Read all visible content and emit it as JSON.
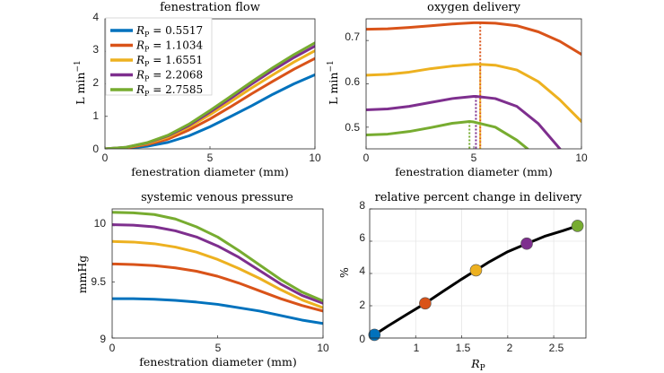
{
  "colors": {
    "blue": "#0072BD",
    "orange": "#D95319",
    "yellow": "#EDB120",
    "purple": "#7E2F8E",
    "green": "#77AC30",
    "black": "#000000"
  },
  "chart_data": [
    {
      "id": "fenestration-flow",
      "type": "line",
      "title": "fenestration flow",
      "xlabel": "fenestration diameter (mm)",
      "ylabel": "L min",
      "ylabel_sup": "−1",
      "xlim": [
        0,
        10
      ],
      "ylim": [
        0,
        4
      ],
      "xticks": [
        "0",
        "5",
        "10"
      ],
      "yticks": [
        "0",
        "1",
        "2",
        "3",
        "4"
      ],
      "legend": "top-left",
      "grid": false,
      "series": [
        {
          "name": "= 0.5517",
          "color": "#0072BD",
          "x": [
            0,
            1,
            2,
            3,
            4,
            5,
            6,
            7,
            8,
            9,
            10
          ],
          "y": [
            0,
            0.02,
            0.08,
            0.2,
            0.4,
            0.68,
            1.0,
            1.33,
            1.68,
            2.0,
            2.28
          ]
        },
        {
          "name": "= 1.1034",
          "color": "#D95319",
          "x": [
            0,
            1,
            2,
            3,
            4,
            5,
            6,
            7,
            8,
            9,
            10
          ],
          "y": [
            0,
            0.03,
            0.13,
            0.3,
            0.58,
            0.92,
            1.3,
            1.7,
            2.08,
            2.45,
            2.78
          ]
        },
        {
          "name": "= 1.6551",
          "color": "#EDB120",
          "x": [
            0,
            1,
            2,
            3,
            4,
            5,
            6,
            7,
            8,
            9,
            10
          ],
          "y": [
            0,
            0.04,
            0.16,
            0.36,
            0.67,
            1.05,
            1.46,
            1.88,
            2.28,
            2.67,
            3.02
          ]
        },
        {
          "name": "= 2.2068",
          "color": "#7E2F8E",
          "x": [
            0,
            1,
            2,
            3,
            4,
            5,
            6,
            7,
            8,
            9,
            10
          ],
          "y": [
            0,
            0.05,
            0.18,
            0.4,
            0.72,
            1.13,
            1.56,
            2.0,
            2.42,
            2.81,
            3.16
          ]
        },
        {
          "name": "= 2.7585",
          "color": "#77AC30",
          "x": [
            0,
            1,
            2,
            3,
            4,
            5,
            6,
            7,
            8,
            9,
            10
          ],
          "y": [
            0,
            0.05,
            0.19,
            0.42,
            0.76,
            1.18,
            1.62,
            2.07,
            2.5,
            2.9,
            3.26
          ]
        }
      ]
    },
    {
      "id": "oxygen-delivery",
      "type": "line",
      "title": "oxygen delivery",
      "xlabel": "fenestration diameter (mm)",
      "ylabel": "L min",
      "ylabel_sup": "−1",
      "xlim": [
        0,
        10
      ],
      "ylim": [
        0.45,
        0.75
      ],
      "xticks": [
        "0",
        "5",
        "10"
      ],
      "yticks": [
        "0.5",
        "0.6",
        "0.7"
      ],
      "grid": false,
      "series": [
        {
          "name": "= 0.5517",
          "color": "#0072BD",
          "x": [],
          "y": []
        },
        {
          "name": "= 1.1034",
          "color": "#D95319",
          "x": [
            0,
            1,
            2,
            3,
            4,
            5,
            5.3,
            6,
            7,
            8,
            9,
            10
          ],
          "y": [
            0.726,
            0.727,
            0.73,
            0.734,
            0.738,
            0.741,
            0.741,
            0.74,
            0.734,
            0.72,
            0.698,
            0.668
          ]
        },
        {
          "name": "= 1.6551",
          "color": "#EDB120",
          "x": [
            0,
            1,
            2,
            3,
            4,
            5,
            5.3,
            6,
            7,
            8,
            9,
            10
          ],
          "y": [
            0.62,
            0.622,
            0.627,
            0.635,
            0.641,
            0.645,
            0.645,
            0.643,
            0.632,
            0.605,
            0.563,
            0.513
          ]
        },
        {
          "name": "= 2.2068",
          "color": "#7E2F8E",
          "x": [
            0,
            1,
            2,
            3,
            4,
            5,
            5.1,
            6,
            7,
            8,
            9
          ],
          "y": [
            0.54,
            0.542,
            0.548,
            0.557,
            0.566,
            0.571,
            0.571,
            0.566,
            0.548,
            0.508,
            0.45
          ]
        },
        {
          "name": "= 2.7585",
          "color": "#77AC30",
          "x": [
            0,
            1,
            2,
            3,
            4,
            4.8,
            5,
            6,
            7,
            7.5
          ],
          "y": [
            0.482,
            0.484,
            0.49,
            0.499,
            0.509,
            0.513,
            0.512,
            0.5,
            0.47,
            0.45
          ]
        }
      ],
      "markers": [
        {
          "x": 5.3,
          "y": 0.741,
          "color": "#D95319"
        },
        {
          "x": 5.3,
          "y": 0.645,
          "color": "#EDB120"
        },
        {
          "x": 5.1,
          "y": 0.571,
          "color": "#7E2F8E"
        },
        {
          "x": 4.8,
          "y": 0.513,
          "color": "#77AC30"
        }
      ]
    },
    {
      "id": "systemic-venous-pressure",
      "type": "line",
      "title": "systemic venous pressure",
      "xlabel": "fenestration diameter (mm)",
      "ylabel": "mmHg",
      "xlim": [
        0,
        10
      ],
      "ylim": [
        9,
        10.15
      ],
      "xticks": [
        "0",
        "5",
        "10"
      ],
      "yticks": [
        "9",
        "9.5",
        "10"
      ],
      "grid": false,
      "series": [
        {
          "name": "= 0.5517",
          "color": "#0072BD",
          "x": [
            0,
            1,
            2,
            3,
            4,
            5,
            6,
            7,
            8,
            9,
            10
          ],
          "y": [
            9.35,
            9.35,
            9.345,
            9.335,
            9.32,
            9.3,
            9.27,
            9.24,
            9.2,
            9.16,
            9.13
          ]
        },
        {
          "name": "= 1.1034",
          "color": "#D95319",
          "x": [
            0,
            1,
            2,
            3,
            4,
            5,
            6,
            7,
            8,
            9,
            10
          ],
          "y": [
            9.66,
            9.655,
            9.645,
            9.625,
            9.595,
            9.55,
            9.49,
            9.42,
            9.35,
            9.29,
            9.24
          ]
        },
        {
          "name": "= 1.6551",
          "color": "#EDB120",
          "x": [
            0,
            1,
            2,
            3,
            4,
            5,
            6,
            7,
            8,
            9,
            10
          ],
          "y": [
            9.86,
            9.855,
            9.84,
            9.81,
            9.765,
            9.7,
            9.62,
            9.53,
            9.43,
            9.34,
            9.27
          ]
        },
        {
          "name": "= 2.2068",
          "color": "#7E2F8E",
          "x": [
            0,
            1,
            2,
            3,
            4,
            5,
            6,
            7,
            8,
            9,
            10
          ],
          "y": [
            10.01,
            10.005,
            9.99,
            9.955,
            9.9,
            9.82,
            9.72,
            9.6,
            9.48,
            9.38,
            9.31
          ]
        },
        {
          "name": "= 2.7585",
          "color": "#77AC30",
          "x": [
            0,
            1,
            2,
            3,
            4,
            5,
            6,
            7,
            8,
            9,
            10
          ],
          "y": [
            10.12,
            10.115,
            10.1,
            10.06,
            9.99,
            9.9,
            9.78,
            9.65,
            9.52,
            9.41,
            9.33
          ]
        }
      ]
    },
    {
      "id": "relative-percent-change",
      "type": "line",
      "title": "relative percent change in delivery",
      "xlabel": "R",
      "xlabel_sub": "P",
      "ylabel": "%",
      "xlim": [
        0.5,
        2.85
      ],
      "ylim": [
        0,
        8
      ],
      "xticks": [
        "1",
        "1.5",
        "2",
        "2.5"
      ],
      "yticks": [
        "0",
        "2",
        "4",
        "6",
        "8"
      ],
      "grid": true,
      "series": [
        {
          "name": "",
          "color": "#000000",
          "x": [
            0.5517,
            0.7,
            0.9,
            1.1034,
            1.3,
            1.5,
            1.6551,
            1.8,
            2.0,
            2.2068,
            2.4,
            2.6,
            2.7585
          ],
          "y": [
            0.2,
            0.75,
            1.45,
            2.15,
            2.9,
            3.65,
            4.2,
            4.72,
            5.35,
            5.85,
            6.3,
            6.65,
            6.95
          ]
        }
      ],
      "markers": [
        {
          "x": 0.5517,
          "y": 0.2,
          "color": "#0072BD"
        },
        {
          "x": 1.1034,
          "y": 2.15,
          "color": "#D95319"
        },
        {
          "x": 1.6551,
          "y": 4.2,
          "color": "#EDB120"
        },
        {
          "x": 2.2068,
          "y": 5.85,
          "color": "#7E2F8E"
        },
        {
          "x": 2.7585,
          "y": 6.95,
          "color": "#77AC30"
        }
      ]
    }
  ]
}
